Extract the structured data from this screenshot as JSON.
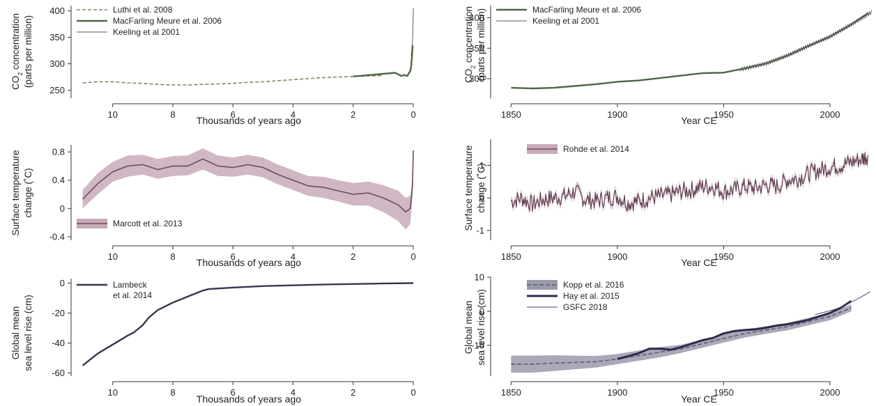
{
  "charts": {
    "co2_long": {
      "xlabel": "Thousands of years ago",
      "ylabel_1": "CO",
      "ylabel_sub": "2",
      "ylabel_2": " concentration",
      "ylabel_3": "(parts per million)"
    },
    "co2_recent": {
      "xlabel": "Year CE",
      "ylabel_1": "CO",
      "ylabel_sub": "2",
      "ylabel_2": " concentration",
      "ylabel_3": "(parts per million)"
    },
    "temp_long": {
      "xlabel": "Thousands of years ago",
      "ylabel_1": "Surface temperature",
      "ylabel_2": "change (˚C)"
    },
    "temp_recent": {
      "xlabel": "Year CE",
      "ylabel_1": "Surface temperature",
      "ylabel_2": "change (˚C)"
    },
    "sea_long": {
      "xlabel": "Thousands of years ago",
      "ylabel_1": "Global mean",
      "ylabel_2": "sea level rise (cm)"
    },
    "sea_recent": {
      "xlabel": "Year CE",
      "ylabel_1": "Global mean",
      "ylabel_2": "sea level rise (cm)"
    }
  },
  "chart_data": [
    {
      "id": "co2_long",
      "type": "line",
      "xlabel": "Thousands of years ago",
      "ylabel": "CO2 concentration (parts per million)",
      "xlim": [
        11.2,
        -0.3
      ],
      "ylim": [
        235,
        410
      ],
      "x_reversed": true,
      "xticks": [
        10,
        8,
        6,
        4,
        2,
        0
      ],
      "yticks": [
        250,
        300,
        350,
        400
      ],
      "legend_position": "top-left",
      "series": [
        {
          "name": "Luthi et al. 2008",
          "style": "dashed",
          "color": "#7a8a66",
          "x": [
            11,
            10.5,
            10,
            9.5,
            9,
            8.5,
            8,
            7.5,
            7,
            6.5,
            6,
            5.5,
            5,
            4.5,
            4,
            3.5,
            3,
            2.5,
            2,
            1.5,
            1
          ],
          "y": [
            264,
            266,
            266,
            264,
            263,
            261,
            260,
            260,
            261,
            262,
            263,
            265,
            266,
            268,
            270,
            272,
            274,
            275,
            276,
            277,
            278
          ]
        },
        {
          "name": "MacFarling Meure et al. 2006",
          "style": "solid",
          "color": "#4e6644",
          "x": [
            2,
            1.8,
            1.6,
            1.4,
            1.2,
            1.0,
            0.8,
            0.6,
            0.5,
            0.4,
            0.3,
            0.2,
            0.15,
            0.1,
            0.07,
            0.05,
            0.02
          ],
          "y": [
            276,
            277,
            278,
            279,
            280,
            281,
            282,
            283,
            280,
            277,
            279,
            277,
            282,
            286,
            295,
            310,
            335
          ]
        },
        {
          "name": "Keeling et al 2001",
          "style": "thin",
          "color": "#5a5a5a",
          "x": [
            0.07,
            0.05,
            0.03,
            0.02,
            0.01,
            0.0
          ],
          "y": [
            315,
            325,
            340,
            355,
            370,
            405
          ]
        }
      ]
    },
    {
      "id": "co2_recent",
      "type": "line",
      "xlabel": "Year CE",
      "ylabel": "CO2 concentration (parts per million)",
      "xlim": [
        1843,
        2020
      ],
      "ylim": [
        268,
        420
      ],
      "xticks": [
        1850,
        1900,
        1950,
        2000
      ],
      "yticks": [
        300,
        350,
        400
      ],
      "legend_position": "top-left",
      "series": [
        {
          "name": "MacFarling Meure et al. 2006",
          "style": "solid",
          "color": "#4e6644",
          "x": [
            1850,
            1860,
            1870,
            1880,
            1890,
            1900,
            1910,
            1920,
            1930,
            1940,
            1950,
            1960,
            1970,
            1980,
            1990,
            2000,
            2010,
            2018
          ],
          "y": [
            285,
            284,
            285,
            288,
            291,
            295,
            297,
            301,
            305,
            309,
            310,
            317,
            325,
            338,
            354,
            369,
            389,
            408
          ]
        },
        {
          "name": "Keeling et al 2001",
          "style": "thin",
          "color": "#5a5a5a",
          "x": [
            1958,
            1970,
            1980,
            1990,
            2000,
            2010,
            2020
          ],
          "y": [
            315,
            325,
            338,
            354,
            369,
            389,
            410
          ]
        }
      ]
    },
    {
      "id": "temp_long",
      "type": "line",
      "xlabel": "Thousands of years ago",
      "ylabel": "Surface temperature change (˚C)",
      "xlim": [
        11.2,
        -0.3
      ],
      "ylim": [
        -0.45,
        0.9
      ],
      "x_reversed": true,
      "xticks": [
        10,
        8,
        6,
        4,
        2,
        0
      ],
      "yticks": [
        -0.4,
        0,
        0.4,
        0.8
      ],
      "legend_position": "bottom-left",
      "series": [
        {
          "name": "Marcott et al. 2013",
          "style": "band",
          "color": "#6e4a5c",
          "band_color": "#c7aab8",
          "x": [
            11,
            10.5,
            10,
            9.5,
            9,
            8.5,
            8,
            7.5,
            7,
            6.5,
            6,
            5.5,
            5,
            4.5,
            4,
            3.5,
            3,
            2.5,
            2,
            1.5,
            1,
            0.5,
            0.25,
            0.1,
            0.03,
            0.0
          ],
          "y": [
            0.13,
            0.35,
            0.52,
            0.6,
            0.62,
            0.55,
            0.6,
            0.6,
            0.7,
            0.6,
            0.58,
            0.62,
            0.58,
            0.48,
            0.4,
            0.32,
            0.3,
            0.25,
            0.2,
            0.22,
            0.15,
            0.05,
            -0.05,
            0.0,
            0.3,
            0.82
          ],
          "lower": [
            0.0,
            0.2,
            0.38,
            0.45,
            0.48,
            0.42,
            0.46,
            0.47,
            0.55,
            0.46,
            0.45,
            0.48,
            0.44,
            0.34,
            0.26,
            0.18,
            0.15,
            0.1,
            0.04,
            0.04,
            -0.05,
            -0.18,
            -0.3,
            -0.22,
            0.15,
            0.78
          ],
          "upper": [
            0.26,
            0.5,
            0.66,
            0.75,
            0.76,
            0.7,
            0.74,
            0.75,
            0.85,
            0.75,
            0.72,
            0.76,
            0.72,
            0.62,
            0.54,
            0.46,
            0.45,
            0.4,
            0.36,
            0.38,
            0.33,
            0.25,
            0.15,
            0.18,
            0.45,
            0.86
          ]
        }
      ]
    },
    {
      "id": "temp_recent",
      "type": "line",
      "xlabel": "Year CE",
      "ylabel": "Surface temperature change (˚C)",
      "xlim": [
        1843,
        2020
      ],
      "ylim": [
        -1.3,
        1.8
      ],
      "xticks": [
        1850,
        1900,
        1950,
        2000
      ],
      "yticks": [
        -1,
        0,
        1
      ],
      "legend_position": "top-left",
      "series": [
        {
          "name": "Rohde et al. 2014",
          "style": "band",
          "color": "#5e3c4e",
          "band_color": "#c7aab8",
          "x": [
            1850,
            1855,
            1860,
            1865,
            1870,
            1875,
            1880,
            1885,
            1890,
            1895,
            1900,
            1905,
            1910,
            1915,
            1920,
            1925,
            1930,
            1935,
            1940,
            1945,
            1950,
            1955,
            1960,
            1965,
            1970,
            1975,
            1980,
            1985,
            1990,
            1995,
            2000,
            2005,
            2010,
            2015,
            2018
          ],
          "y": [
            -0.1,
            0.0,
            -0.2,
            -0.05,
            0.0,
            0.05,
            0.2,
            -0.05,
            -0.1,
            0.0,
            0.05,
            -0.15,
            -0.1,
            0.0,
            0.05,
            0.1,
            0.2,
            0.25,
            0.35,
            0.35,
            0.2,
            0.25,
            0.35,
            0.3,
            0.4,
            0.35,
            0.55,
            0.6,
            0.75,
            0.85,
            0.95,
            1.0,
            1.1,
            1.2,
            1.3
          ]
        }
      ]
    },
    {
      "id": "sea_long",
      "type": "line",
      "xlabel": "Thousands of years ago",
      "ylabel": "Global mean sea level rise (cm)",
      "xlim": [
        11.2,
        -0.3
      ],
      "ylim": [
        -62,
        3
      ],
      "x_reversed": true,
      "xticks": [
        10,
        8,
        6,
        4,
        2,
        0
      ],
      "yticks": [
        -60,
        -40,
        -20,
        0
      ],
      "legend_position": "top-left",
      "series": [
        {
          "name": "Lambeck et al. 2014",
          "style": "solid",
          "color": "#3b3450",
          "x": [
            11,
            10.5,
            10,
            9.5,
            9.3,
            9,
            8.8,
            8.5,
            8,
            7.5,
            7,
            6.8,
            6,
            5,
            4,
            3,
            2,
            1,
            0
          ],
          "y": [
            -55,
            -47,
            -41,
            -35,
            -33,
            -28,
            -23,
            -18,
            -13,
            -9,
            -5,
            -4,
            -3,
            -2,
            -1.5,
            -1,
            -0.6,
            -0.3,
            0
          ]
        }
      ]
    },
    {
      "id": "sea_recent",
      "type": "line",
      "xlabel": "Year CE",
      "ylabel": "Global mean sea level rise (cm)",
      "xlim": [
        1843,
        2020
      ],
      "ylim": [
        -19,
        10
      ],
      "xticks": [
        1850,
        1900,
        1950,
        2000
      ],
      "yticks": [
        -10,
        0,
        10
      ],
      "legend_position": "top-left",
      "series": [
        {
          "name": "Kopp et al. 2016",
          "style": "dashed-band",
          "color": "#5a5a72",
          "band_color": "#9a9aaa",
          "x": [
            1850,
            1860,
            1870,
            1880,
            1890,
            1900,
            1910,
            1920,
            1930,
            1940,
            1950,
            1960,
            1970,
            1980,
            1990,
            2000,
            2010
          ],
          "y": [
            -15.5,
            -15.5,
            -15.2,
            -15.0,
            -14.8,
            -14.0,
            -13.0,
            -12.0,
            -11.0,
            -9.5,
            -8.0,
            -6.5,
            -5.5,
            -4.5,
            -3.0,
            -1.5,
            1.0
          ],
          "lower": [
            -18,
            -18,
            -17.5,
            -17,
            -16.5,
            -15.5,
            -14.5,
            -13.5,
            -12.2,
            -10.7,
            -9.2,
            -7.7,
            -6.6,
            -5.6,
            -4.1,
            -2.6,
            0.0
          ],
          "upper": [
            -13,
            -13,
            -12.9,
            -13,
            -13.1,
            -12.5,
            -11.5,
            -10.5,
            -9.8,
            -8.3,
            -6.8,
            -5.3,
            -4.4,
            -3.4,
            -1.9,
            -0.4,
            2.0
          ]
        },
        {
          "name": "Hay et al. 2015",
          "style": "bold",
          "color": "#2d2a4a",
          "x": [
            1900,
            1905,
            1910,
            1915,
            1920,
            1925,
            1930,
            1935,
            1940,
            1945,
            1950,
            1955,
            1960,
            1965,
            1970,
            1975,
            1980,
            1985,
            1990,
            1995,
            2000,
            2005,
            2010
          ],
          "y": [
            -14,
            -13.2,
            -12.3,
            -11,
            -11,
            -11.3,
            -10.5,
            -9.5,
            -8.5,
            -7.8,
            -6.5,
            -5.8,
            -5.5,
            -5.3,
            -4.8,
            -4.2,
            -3.8,
            -3.2,
            -2.5,
            -1.5,
            -0.5,
            1.0,
            3.0
          ]
        },
        {
          "name": "GSFC 2018",
          "style": "thin",
          "color": "#4a4a6a",
          "x": [
            1993,
            1996,
            1999,
            2002,
            2005,
            2008,
            2011,
            2014,
            2017,
            2019
          ],
          "y": [
            -1.0,
            -0.5,
            0.0,
            0.5,
            1.2,
            2.0,
            3.0,
            4.0,
            5.0,
            5.8
          ]
        }
      ]
    }
  ]
}
